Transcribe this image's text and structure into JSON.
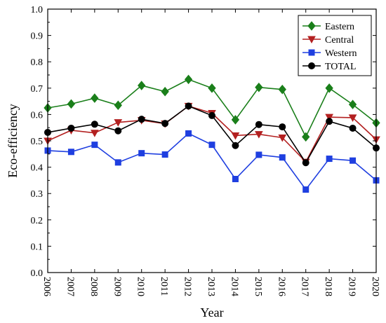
{
  "chart_data": {
    "type": "line",
    "title": "",
    "xlabel": "Year",
    "ylabel": "Eco-efficiency",
    "ylim": [
      0.0,
      1.0
    ],
    "yticks": [
      "0.0",
      "0.1",
      "0.2",
      "0.3",
      "0.4",
      "0.5",
      "0.6",
      "0.7",
      "0.8",
      "0.9",
      "1.0"
    ],
    "categories": [
      "2006",
      "2007",
      "2008",
      "2009",
      "2010",
      "2011",
      "2012",
      "2013",
      "2014",
      "2015",
      "2016",
      "2017",
      "2018",
      "2019",
      "2020"
    ],
    "legend_position": "top-right",
    "grid": false,
    "series": [
      {
        "name": "Eastern",
        "color": "#1a7f1a",
        "marker": "diamond",
        "values": [
          0.625,
          0.64,
          0.662,
          0.635,
          0.71,
          0.687,
          0.733,
          0.7,
          0.58,
          0.703,
          0.695,
          0.515,
          0.7,
          0.638,
          0.568
        ]
      },
      {
        "name": "Central",
        "color": "#b32020",
        "marker": "triangle-down",
        "values": [
          0.5,
          0.54,
          0.53,
          0.57,
          0.578,
          0.565,
          0.632,
          0.605,
          0.52,
          0.525,
          0.512,
          0.42,
          0.59,
          0.588,
          0.505
        ]
      },
      {
        "name": "Western",
        "color": "#1f3fe0",
        "marker": "square",
        "values": [
          0.463,
          0.458,
          0.485,
          0.418,
          0.453,
          0.448,
          0.528,
          0.485,
          0.355,
          0.447,
          0.437,
          0.315,
          0.432,
          0.425,
          0.35
        ]
      },
      {
        "name": "TOTAL",
        "color": "#000000",
        "marker": "circle",
        "values": [
          0.532,
          0.548,
          0.563,
          0.538,
          0.582,
          0.566,
          0.632,
          0.596,
          0.482,
          0.562,
          0.553,
          0.417,
          0.574,
          0.548,
          0.473
        ]
      }
    ]
  }
}
